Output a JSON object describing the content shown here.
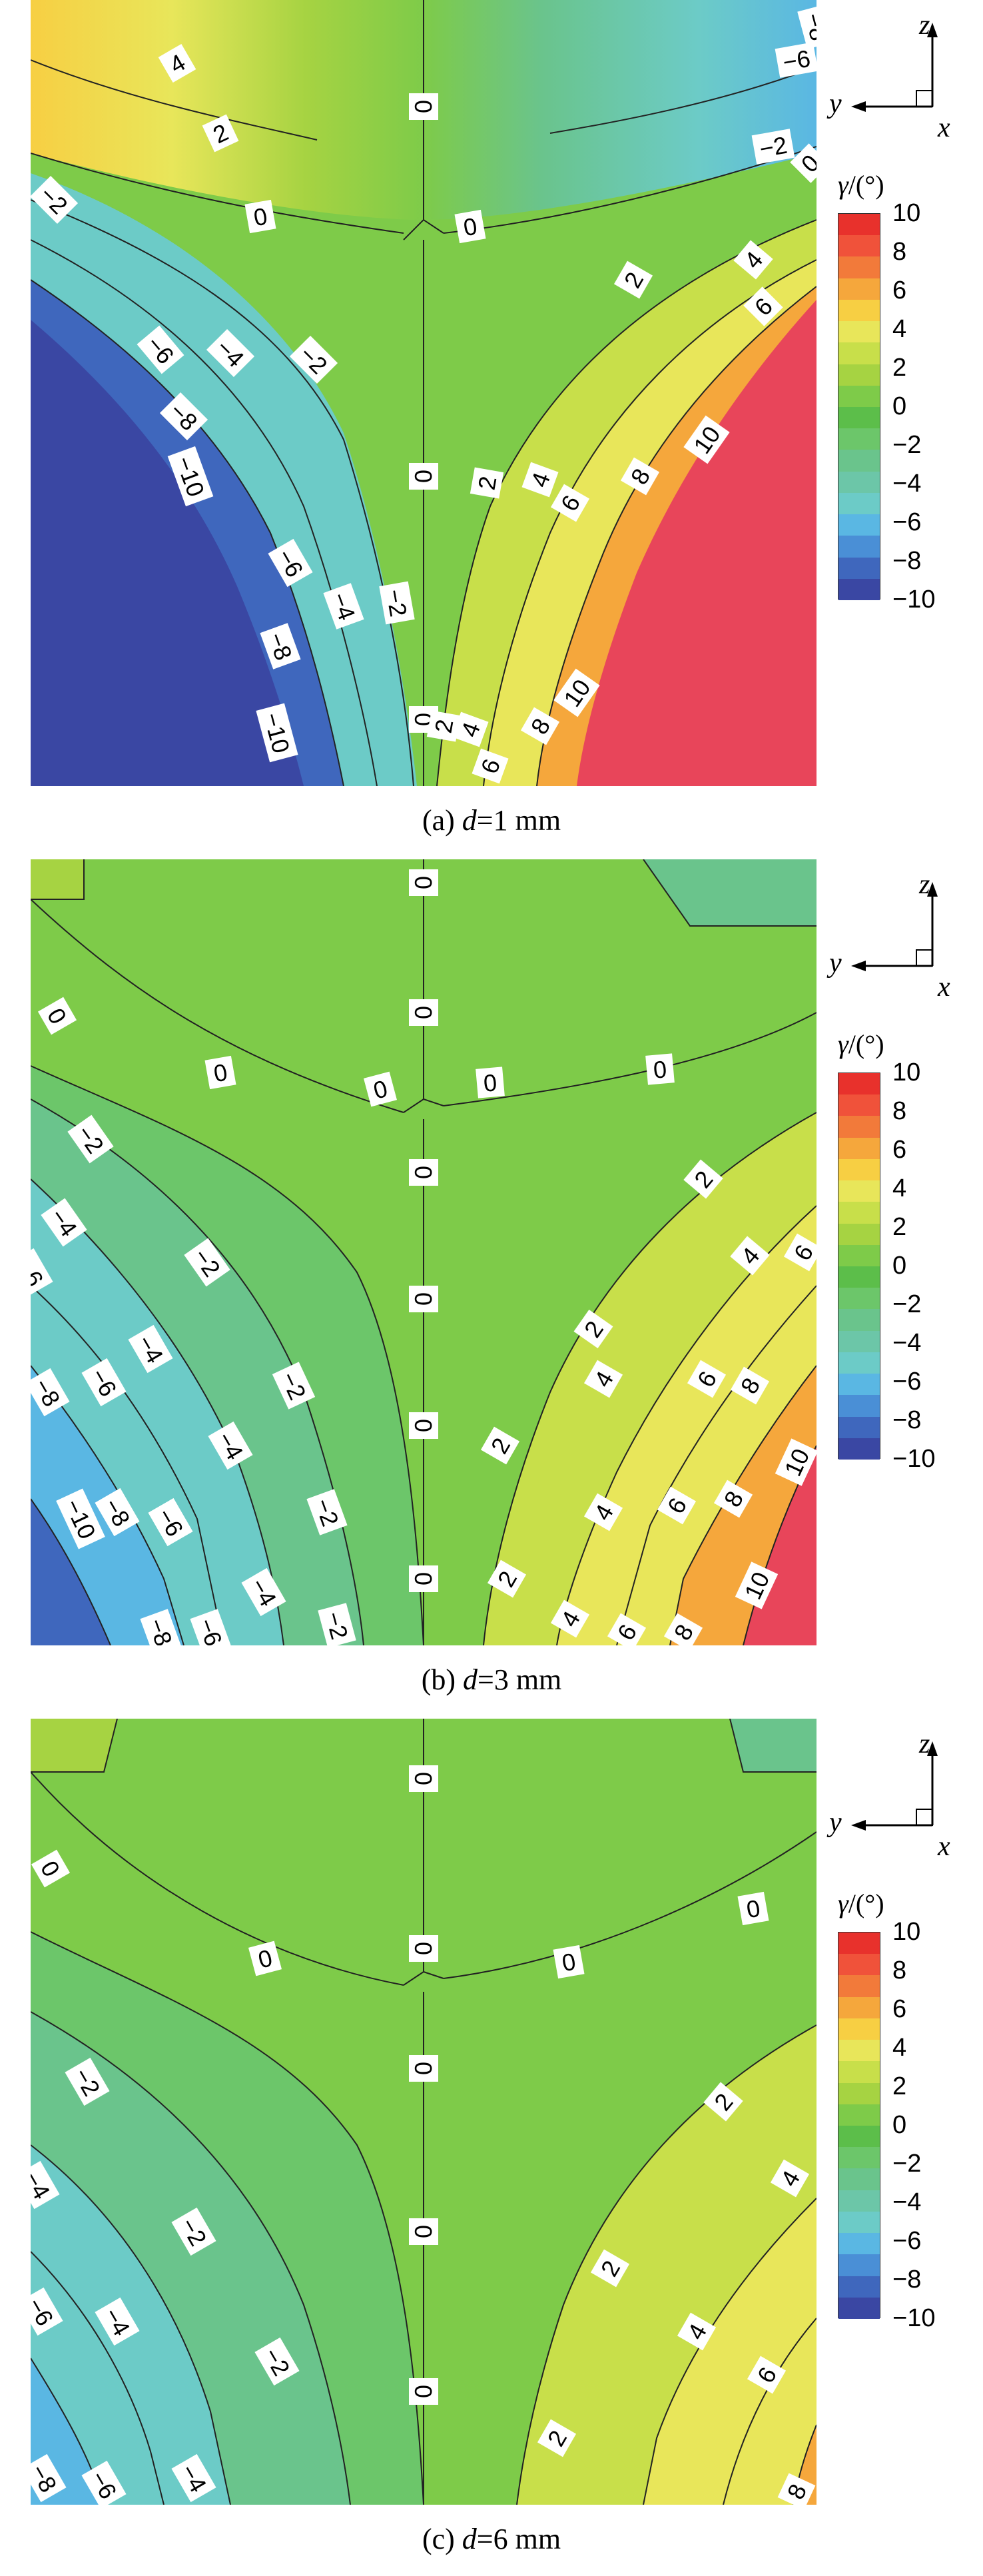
{
  "colorbar": {
    "title_symbol": "γ",
    "title_unit": "/(°)",
    "ticks": [
      "10",
      "8",
      "6",
      "4",
      "2",
      "0",
      "−2",
      "−4",
      "−6",
      "−8",
      "−10"
    ],
    "colors": [
      "#e8312c",
      "#f0523a",
      "#f27a3a",
      "#f5a73c",
      "#f7cf43",
      "#e8e65a",
      "#c8df4a",
      "#a6d342",
      "#7ecb49",
      "#5cbe4a",
      "#6cc66a",
      "#6ac48c",
      "#6cc6a8",
      "#6ccbc7",
      "#5ab7e3",
      "#4a8fd6",
      "#3f67bd",
      "#3a47a3"
    ]
  },
  "axes_labels": {
    "vertical": "z",
    "horizontal": "y",
    "out_of_plane": "x"
  },
  "panels": [
    {
      "caption_prefix": "(a) ",
      "caption_var": "d",
      "caption_value": "=1 mm"
    },
    {
      "caption_prefix": "(b) ",
      "caption_var": "d",
      "caption_value": "=3 mm"
    },
    {
      "caption_prefix": "(c) ",
      "caption_var": "d",
      "caption_value": "=6 mm"
    }
  ],
  "chart_data": [
    {
      "type": "heatmap",
      "title": "(a) d=1 mm",
      "colorbar_label": "γ/(°)",
      "colorbar_range": [
        -10,
        10
      ],
      "contour_levels": [
        -10,
        -8,
        -6,
        -4,
        -2,
        0,
        2,
        4,
        6,
        8,
        10
      ],
      "contour_labels": [
        {
          "text": "4"
        },
        {
          "text": "2"
        },
        {
          "text": "0"
        },
        {
          "text": "−2"
        },
        {
          "text": "0"
        },
        {
          "text": "0"
        },
        {
          "text": "−8"
        },
        {
          "text": "−6"
        },
        {
          "text": "−2"
        },
        {
          "text": "0"
        },
        {
          "text": "2"
        },
        {
          "text": "4"
        },
        {
          "text": "6"
        },
        {
          "text": "−6"
        },
        {
          "text": "−4"
        },
        {
          "text": "−2"
        },
        {
          "text": "−8"
        },
        {
          "text": "−10"
        },
        {
          "text": "0"
        },
        {
          "text": "2"
        },
        {
          "text": "4"
        },
        {
          "text": "6"
        },
        {
          "text": "8"
        },
        {
          "text": "10"
        },
        {
          "text": "−6"
        },
        {
          "text": "−4"
        },
        {
          "text": "−2"
        },
        {
          "text": "−8"
        },
        {
          "text": "−10"
        },
        {
          "text": "0"
        },
        {
          "text": "2"
        },
        {
          "text": "4"
        },
        {
          "text": "6"
        },
        {
          "text": "8"
        },
        {
          "text": "10"
        }
      ]
    },
    {
      "type": "heatmap",
      "title": "(b) d=3 mm",
      "colorbar_label": "γ/(°)",
      "colorbar_range": [
        -10,
        10
      ],
      "contour_levels": [
        -10,
        -8,
        -6,
        -4,
        -2,
        0,
        2,
        4,
        6,
        8,
        10
      ],
      "contour_labels": [
        {
          "text": "0"
        },
        {
          "text": "0"
        },
        {
          "text": "0"
        },
        {
          "text": "0"
        },
        {
          "text": "0"
        },
        {
          "text": "0"
        },
        {
          "text": "0"
        },
        {
          "text": "−2"
        },
        {
          "text": "0"
        },
        {
          "text": "2"
        },
        {
          "text": "−4"
        },
        {
          "text": "−2"
        },
        {
          "text": "0"
        },
        {
          "text": "4"
        },
        {
          "text": "6"
        },
        {
          "text": "−6"
        },
        {
          "text": "−4"
        },
        {
          "text": "2"
        },
        {
          "text": "−8"
        },
        {
          "text": "−6"
        },
        {
          "text": "−2"
        },
        {
          "text": "0"
        },
        {
          "text": "2"
        },
        {
          "text": "4"
        },
        {
          "text": "6"
        },
        {
          "text": "8"
        },
        {
          "text": "−4"
        },
        {
          "text": "10"
        },
        {
          "text": "−10"
        },
        {
          "text": "−8"
        },
        {
          "text": "−6"
        },
        {
          "text": "−2"
        },
        {
          "text": "0"
        },
        {
          "text": "2"
        },
        {
          "text": "4"
        },
        {
          "text": "6"
        },
        {
          "text": "8"
        },
        {
          "text": "−4"
        },
        {
          "text": "10"
        },
        {
          "text": "−8"
        },
        {
          "text": "−6"
        },
        {
          "text": "−2"
        },
        {
          "text": "4"
        },
        {
          "text": "6"
        },
        {
          "text": "8"
        }
      ]
    },
    {
      "type": "heatmap",
      "title": "(c) d=6 mm",
      "colorbar_label": "γ/(°)",
      "colorbar_range": [
        -10,
        10
      ],
      "contour_levels": [
        -10,
        -8,
        -6,
        -4,
        -2,
        0,
        2,
        4,
        6,
        8,
        10
      ],
      "contour_labels": [
        {
          "text": "0"
        },
        {
          "text": "0"
        },
        {
          "text": "0"
        },
        {
          "text": "0"
        },
        {
          "text": "0"
        },
        {
          "text": "0"
        },
        {
          "text": "0"
        },
        {
          "text": "−2"
        },
        {
          "text": "2"
        },
        {
          "text": "−4"
        },
        {
          "text": "4"
        },
        {
          "text": "−2"
        },
        {
          "text": "0"
        },
        {
          "text": "2"
        },
        {
          "text": "−6"
        },
        {
          "text": "−4"
        },
        {
          "text": "4"
        },
        {
          "text": "−2"
        },
        {
          "text": "0"
        },
        {
          "text": "6"
        },
        {
          "text": "2"
        },
        {
          "text": "−8"
        },
        {
          "text": "−6"
        },
        {
          "text": "−4"
        },
        {
          "text": "8"
        }
      ]
    }
  ]
}
